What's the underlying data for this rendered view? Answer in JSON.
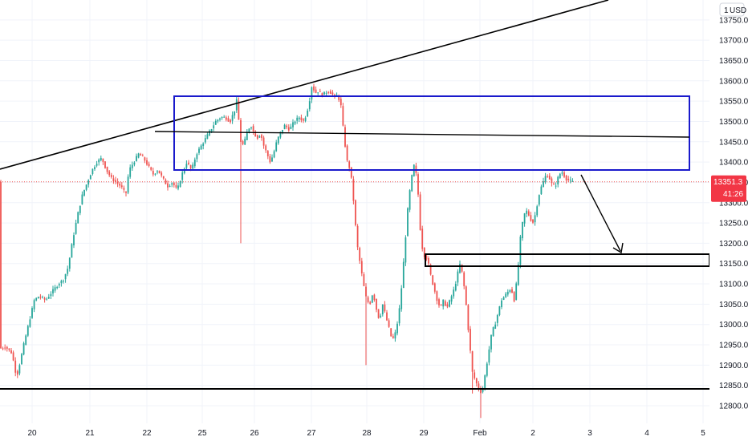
{
  "chart_data": {
    "type": "candlestick",
    "currency_label": "USD",
    "currency_prefix": "1",
    "price_badge": "13351.3",
    "timer_badge": "41:26",
    "colors": {
      "up": "#26a69a",
      "down": "#ef5350",
      "drawing": "#000000",
      "zone": "#1a1acc",
      "badge": "#f23645",
      "price_line": "#ef5350",
      "grid": "#f0f3fa"
    },
    "ylim": [
      12760,
      13800
    ],
    "y_ticks": [
      "12800.0",
      "12850.0",
      "12900.0",
      "12950.0",
      "13000.0",
      "13050.0",
      "13100.0",
      "13150.0",
      "13200.0",
      "13250.0",
      "13300.0",
      "13350.0",
      "13400.0",
      "13450.0",
      "13500.0",
      "13550.0",
      "13600.0",
      "13650.0",
      "13700.0",
      "13750.0"
    ],
    "x_ticks": [
      "20",
      "21",
      "22",
      "25",
      "26",
      "27",
      "28",
      "29",
      "Feb",
      "2",
      "3",
      "4",
      "5"
    ],
    "last_price": 13351.3,
    "path_points": [
      [
        0,
        12940
      ],
      [
        8,
        12945
      ],
      [
        16,
        12930
      ],
      [
        22,
        12870
      ],
      [
        26,
        12905
      ],
      [
        32,
        12960
      ],
      [
        38,
        13010
      ],
      [
        44,
        13060
      ],
      [
        50,
        13070
      ],
      [
        58,
        13060
      ],
      [
        66,
        13080
      ],
      [
        74,
        13100
      ],
      [
        80,
        13110
      ],
      [
        86,
        13140
      ],
      [
        92,
        13210
      ],
      [
        98,
        13270
      ],
      [
        104,
        13320
      ],
      [
        110,
        13350
      ],
      [
        116,
        13380
      ],
      [
        122,
        13400
      ],
      [
        128,
        13410
      ],
      [
        134,
        13380
      ],
      [
        140,
        13360
      ],
      [
        146,
        13350
      ],
      [
        152,
        13340
      ],
      [
        158,
        13320
      ],
      [
        162,
        13380
      ],
      [
        168,
        13400
      ],
      [
        174,
        13420
      ],
      [
        180,
        13410
      ],
      [
        186,
        13390
      ],
      [
        192,
        13370
      ],
      [
        198,
        13380
      ],
      [
        204,
        13360
      ],
      [
        210,
        13340
      ],
      [
        216,
        13350
      ],
      [
        222,
        13330
      ],
      [
        228,
        13370
      ],
      [
        234,
        13400
      ],
      [
        240,
        13380
      ],
      [
        246,
        13420
      ],
      [
        252,
        13440
      ],
      [
        258,
        13460
      ],
      [
        264,
        13480
      ],
      [
        270,
        13500
      ],
      [
        276,
        13510
      ],
      [
        282,
        13510
      ],
      [
        288,
        13500
      ],
      [
        294,
        13530
      ],
      [
        297,
        13560
      ],
      [
        300,
        13460
      ],
      [
        303,
        13440
      ],
      [
        306,
        13450
      ],
      [
        310,
        13480
      ],
      [
        314,
        13490
      ],
      [
        318,
        13470
      ],
      [
        322,
        13460
      ],
      [
        326,
        13470
      ],
      [
        330,
        13440
      ],
      [
        334,
        13420
      ],
      [
        338,
        13400
      ],
      [
        342,
        13420
      ],
      [
        346,
        13450
      ],
      [
        350,
        13470
      ],
      [
        356,
        13490
      ],
      [
        362,
        13480
      ],
      [
        368,
        13500
      ],
      [
        374,
        13510
      ],
      [
        380,
        13500
      ],
      [
        386,
        13540
      ],
      [
        390,
        13590
      ],
      [
        394,
        13570
      ],
      [
        398,
        13575
      ],
      [
        402,
        13565
      ],
      [
        406,
        13570
      ],
      [
        410,
        13575
      ],
      [
        414,
        13570
      ],
      [
        418,
        13560
      ],
      [
        422,
        13565
      ],
      [
        426,
        13540
      ],
      [
        430,
        13460
      ],
      [
        434,
        13400
      ],
      [
        438,
        13380
      ],
      [
        442,
        13300
      ],
      [
        446,
        13200
      ],
      [
        450,
        13150
      ],
      [
        454,
        13100
      ],
      [
        458,
        13060
      ],
      [
        462,
        13050
      ],
      [
        466,
        13080
      ],
      [
        470,
        13040
      ],
      [
        474,
        13010
      ],
      [
        478,
        13050
      ],
      [
        482,
        13020
      ],
      [
        486,
        12990
      ],
      [
        490,
        12960
      ],
      [
        494,
        12980
      ],
      [
        498,
        13020
      ],
      [
        502,
        13100
      ],
      [
        506,
        13200
      ],
      [
        510,
        13300
      ],
      [
        514,
        13360
      ],
      [
        518,
        13400
      ],
      [
        522,
        13330
      ],
      [
        526,
        13200
      ],
      [
        530,
        13170
      ],
      [
        534,
        13160
      ],
      [
        538,
        13120
      ],
      [
        542,
        13090
      ],
      [
        546,
        13060
      ],
      [
        550,
        13040
      ],
      [
        554,
        13060
      ],
      [
        558,
        13040
      ],
      [
        562,
        13060
      ],
      [
        566,
        13080
      ],
      [
        570,
        13110
      ],
      [
        574,
        13150
      ],
      [
        578,
        13120
      ],
      [
        582,
        13050
      ],
      [
        586,
        12960
      ],
      [
        590,
        12880
      ],
      [
        594,
        12860
      ],
      [
        598,
        12840
      ],
      [
        602,
        12830
      ],
      [
        606,
        12880
      ],
      [
        610,
        12930
      ],
      [
        614,
        12980
      ],
      [
        618,
        13000
      ],
      [
        622,
        13030
      ],
      [
        626,
        13060
      ],
      [
        630,
        13070
      ],
      [
        634,
        13080
      ],
      [
        638,
        13090
      ],
      [
        642,
        13060
      ],
      [
        646,
        13120
      ],
      [
        650,
        13220
      ],
      [
        654,
        13270
      ],
      [
        658,
        13280
      ],
      [
        662,
        13260
      ],
      [
        666,
        13250
      ],
      [
        670,
        13290
      ],
      [
        674,
        13330
      ],
      [
        678,
        13350
      ],
      [
        682,
        13370
      ],
      [
        686,
        13360
      ],
      [
        690,
        13340
      ],
      [
        694,
        13345
      ],
      [
        698,
        13370
      ],
      [
        702,
        13375
      ],
      [
        706,
        13360
      ],
      [
        710,
        13355
      ],
      [
        714,
        13351
      ]
    ]
  }
}
